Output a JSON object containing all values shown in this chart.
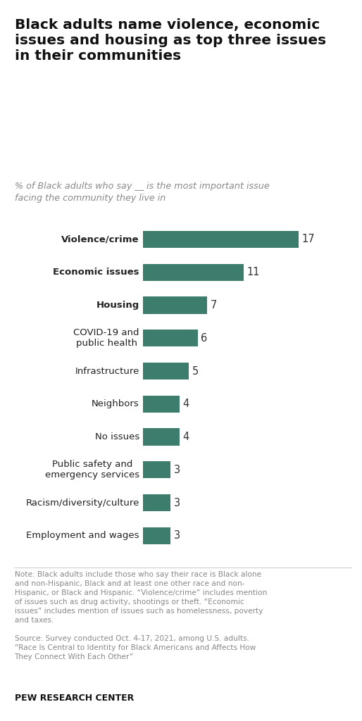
{
  "title": "Black adults name violence, economic\nissues and housing as top three issues\nin their communities",
  "subtitle": "% of Black adults who say __ is the most important issue\nfacing the community they live in",
  "categories": [
    "Violence/crime",
    "Economic issues",
    "Housing",
    "COVID-19 and\npublic health",
    "Infrastructure",
    "Neighbors",
    "No issues",
    "Public safety and\nemergency services",
    "Racism/diversity/culture",
    "Employment and wages"
  ],
  "values": [
    17,
    11,
    7,
    6,
    5,
    4,
    4,
    3,
    3,
    3
  ],
  "bar_color": "#3d7d6e",
  "note_line1": "Note: Black adults include those who say their race is Black alone",
  "note_line2": "and non-Hispanic, Black and at least one other race and non-",
  "note_line3": "Hispanic, or Black and Hispanic. “Violence/crime” includes mention",
  "note_line4": "of issues such as drug activity, shootings or theft. “Economic",
  "note_line5": "issues” includes mention of issues such as homelessness, poverty",
  "note_line6": "and taxes.",
  "note_line7": "Source: Survey conducted Oct. 4-17, 2021, among U.S. adults.",
  "note_line8": "“Race Is Central to Identity for Black Americans and Affects How",
  "note_line9": "They Connect With Each Other”",
  "source_label": "PEW RESEARCH CENTER",
  "xlim": [
    0,
    20
  ],
  "background_color": "#ffffff",
  "bar_color_top3": "#3d7d6e",
  "label_bold_count": 3
}
